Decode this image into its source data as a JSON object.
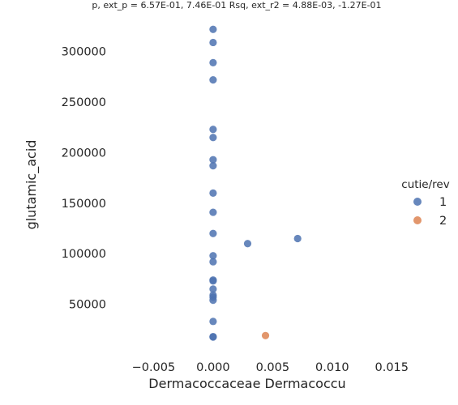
{
  "chart_data": {
    "type": "scatter",
    "title": "p, ext_p = 6.57E-01, 7.46E-01 Rsq, ext_r2 = 4.88E-03, -1.27E-01",
    "xlabel": "Dermacoccaceae Dermacoccu",
    "ylabel": "glutamic_acid",
    "xlim": [
      -0.0085,
      0.0175
    ],
    "ylim": [
      0,
      335000
    ],
    "xticks": [
      -0.005,
      0.0,
      0.005,
      0.01,
      0.015
    ],
    "xtick_labels": [
      "−0.005",
      "0.000",
      "0.005",
      "0.010",
      "0.015"
    ],
    "yticks": [
      50000,
      100000,
      150000,
      200000,
      250000,
      300000
    ],
    "ytick_labels": [
      "50000",
      "100000",
      "150000",
      "200000",
      "250000",
      "300000"
    ],
    "grid": false,
    "legend": {
      "title": "cutie/rev",
      "placement": "right"
    },
    "series": [
      {
        "name": "1",
        "color": "#4c72b0",
        "points": [
          [
            0,
            322000
          ],
          [
            0,
            309000
          ],
          [
            0,
            289000
          ],
          [
            0,
            272000
          ],
          [
            0,
            223000
          ],
          [
            0,
            215000
          ],
          [
            0,
            193000
          ],
          [
            0,
            187000
          ],
          [
            0,
            160000
          ],
          [
            0,
            141000
          ],
          [
            0,
            120000
          ],
          [
            0,
            98000
          ],
          [
            0,
            92000
          ],
          [
            0,
            74000
          ],
          [
            0,
            73000
          ],
          [
            0,
            65000
          ],
          [
            0,
            59000
          ],
          [
            0,
            57000
          ],
          [
            0,
            54000
          ],
          [
            0,
            33000
          ],
          [
            0,
            18000
          ],
          [
            0,
            17500
          ],
          [
            0.0029,
            110000
          ],
          [
            0.0071,
            115000
          ]
        ]
      },
      {
        "name": "2",
        "color": "#dd8452",
        "points": [
          [
            0.0044,
            19000
          ]
        ]
      }
    ]
  }
}
